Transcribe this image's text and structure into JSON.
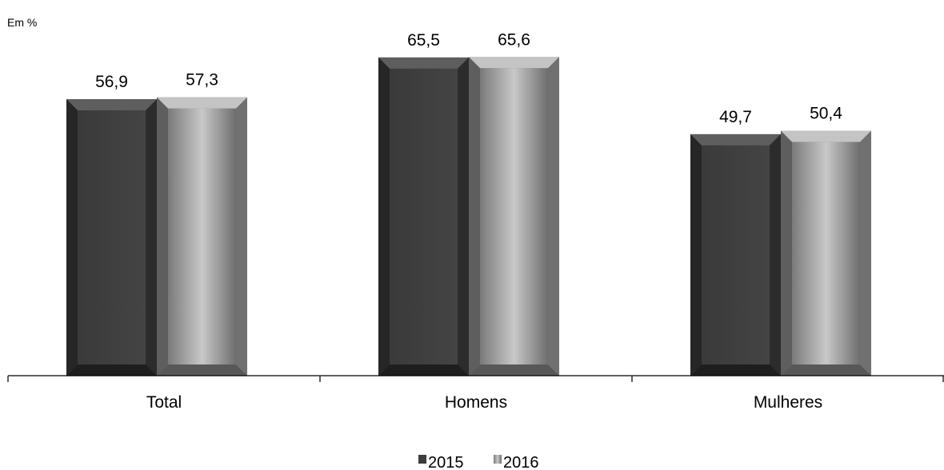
{
  "chart_data": {
    "type": "bar",
    "unit_label": "Em %",
    "categories": [
      "Total",
      "Homens",
      "Mulheres"
    ],
    "series": [
      {
        "name": "2015",
        "values": [
          56.9,
          65.5,
          49.7
        ],
        "labels": [
          "56,9",
          "65,5",
          "49,7"
        ],
        "color": "#404040"
      },
      {
        "name": "2016",
        "values": [
          57.3,
          65.6,
          50.4
        ],
        "labels": [
          "57,3",
          "65,6",
          "50,4"
        ],
        "color": "#9a9a9a"
      }
    ],
    "ylim": [
      0,
      77
    ],
    "grid": false,
    "legend_position": "bottom"
  }
}
